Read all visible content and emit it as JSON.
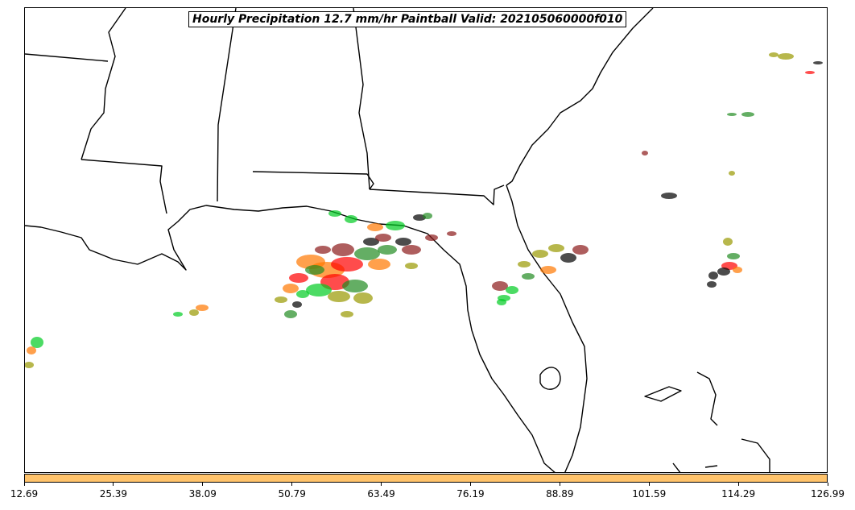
{
  "title": "Hourly Precipitation 12.7 mm/hr Paintball Valid: 202105060000f010",
  "colorbar": {
    "color": "#ffc36b",
    "ticks": [
      "12.69",
      "25.39",
      "38.09",
      "50.79",
      "63.49",
      "76.19",
      "88.89",
      "101.59",
      "114.29",
      "126.99"
    ]
  },
  "member_colors": [
    "#ff0000",
    "#00cc22",
    "#ff7700",
    "#000000",
    "#228b22",
    "#999900",
    "#8b1a1a"
  ]
}
